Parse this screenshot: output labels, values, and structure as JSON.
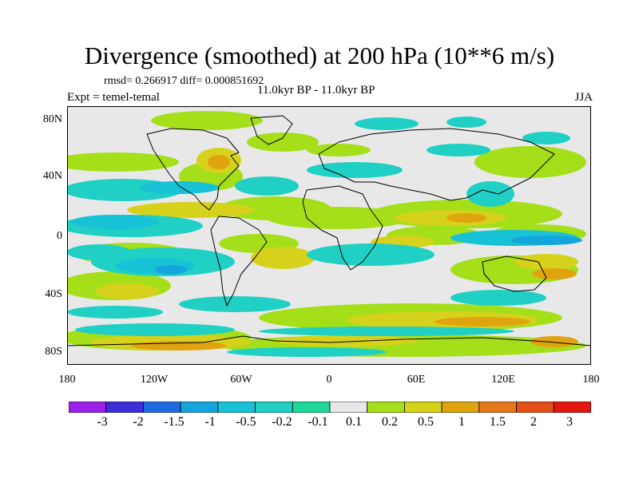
{
  "title": "Divergence (smoothed) at 200 hPa (10**6 m/s)",
  "stats": "rmsd= 0.266917 diff= 0.000851692",
  "period": "11.0kyr BP - 11.0kyr BP",
  "expt": "Expt = temel-temal",
  "season": "JJA",
  "lat_labels": [
    "80N",
    "40N",
    "0",
    "40S",
    "80S"
  ],
  "lon_labels": [
    "180",
    "120W",
    "60W",
    "0",
    "60E",
    "120E",
    "180"
  ],
  "colorbar": {
    "labels": [
      "-3",
      "-2",
      "-1.5",
      "-1",
      "-0.5",
      "-0.2",
      "-0.1",
      "0.1",
      "0.2",
      "0.5",
      "1",
      "1.5",
      "2",
      "3"
    ],
    "colors": [
      "#9b1fe6",
      "#3c2fd9",
      "#1e6ae0",
      "#14a5dc",
      "#17c2d6",
      "#20d0c4",
      "#1fd999",
      "#e8e8e8",
      "#a4df1a",
      "#d6d21c",
      "#e0a40f",
      "#e4781a",
      "#e44f18",
      "#e3170f"
    ]
  },
  "colors": {
    "neutral": "#e8e8e8",
    "coast": "#000000"
  }
}
